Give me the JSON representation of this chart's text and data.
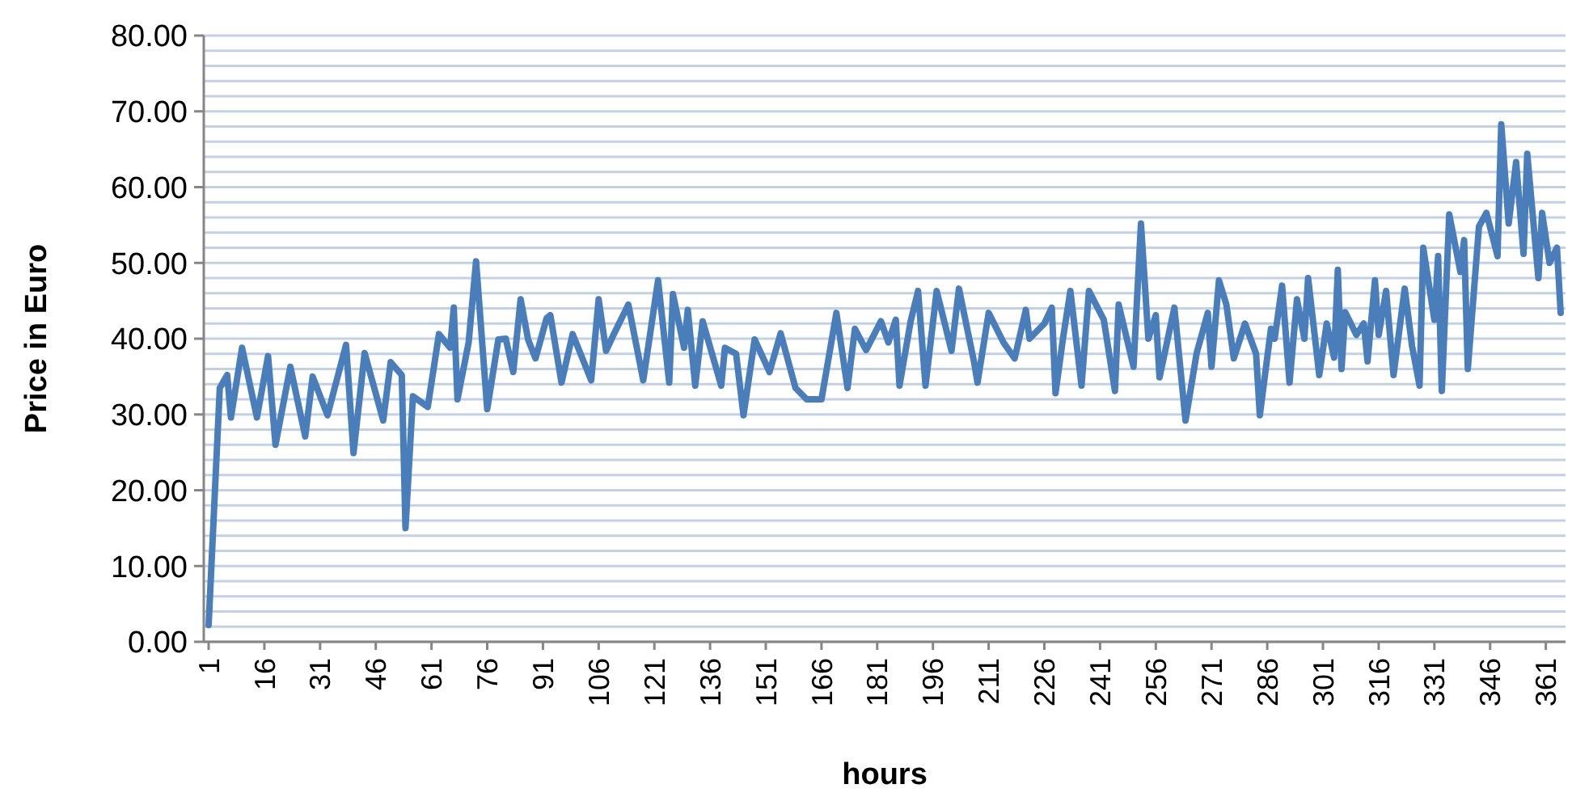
{
  "chart_data": {
    "type": "line",
    "xlabel": "hours",
    "ylabel": "Price in Euro",
    "color": "#4a7ebb",
    "grid": "y",
    "marker": "none",
    "line_style": "solid",
    "xlim": [
      1,
      365
    ],
    "xticks": [
      1,
      16,
      31,
      46,
      61,
      76,
      91,
      106,
      121,
      136,
      151,
      166,
      181,
      196,
      211,
      226,
      241,
      256,
      271,
      286,
      301,
      316,
      331,
      346,
      361
    ],
    "ylim": [
      0,
      80
    ],
    "yticks": [
      {
        "value": 0,
        "label": "0.00"
      },
      {
        "value": 2,
        "label": null
      },
      {
        "value": 4,
        "label": null
      },
      {
        "value": 6,
        "label": null
      },
      {
        "value": 8,
        "label": null
      },
      {
        "value": 10,
        "label": "10.00"
      },
      {
        "value": 12,
        "label": null
      },
      {
        "value": 14,
        "label": null
      },
      {
        "value": 16,
        "label": null
      },
      {
        "value": 18,
        "label": null
      },
      {
        "value": 20,
        "label": "20.00"
      },
      {
        "value": 22,
        "label": null
      },
      {
        "value": 24,
        "label": null
      },
      {
        "value": 26,
        "label": null
      },
      {
        "value": 28,
        "label": null
      },
      {
        "value": 30,
        "label": "30.00"
      },
      {
        "value": 32,
        "label": null
      },
      {
        "value": 34,
        "label": null
      },
      {
        "value": 36,
        "label": null
      },
      {
        "value": 38,
        "label": null
      },
      {
        "value": 40,
        "label": "40.00"
      },
      {
        "value": 42,
        "label": null
      },
      {
        "value": 44,
        "label": null
      },
      {
        "value": 46,
        "label": null
      },
      {
        "value": 48,
        "label": null
      },
      {
        "value": 50,
        "label": "50.00"
      },
      {
        "value": 52,
        "label": null
      },
      {
        "value": 54,
        "label": null
      },
      {
        "value": 56,
        "label": null
      },
      {
        "value": 58,
        "label": null
      },
      {
        "value": 60,
        "label": "60.00"
      },
      {
        "value": 62,
        "label": null
      },
      {
        "value": 64,
        "label": null
      },
      {
        "value": 66,
        "label": null
      },
      {
        "value": 68,
        "label": null
      },
      {
        "value": 70,
        "label": "70.00"
      },
      {
        "value": 72,
        "label": null
      },
      {
        "value": 74,
        "label": null
      },
      {
        "value": 76,
        "label": null
      },
      {
        "value": 78,
        "label": null
      },
      {
        "value": 80,
        "label": "80.00"
      }
    ],
    "x": [
      1,
      4,
      6,
      7,
      10,
      14,
      17,
      19,
      23,
      27,
      29,
      33,
      38,
      40,
      43,
      48,
      50,
      53,
      54,
      56,
      60,
      63,
      66,
      67,
      68,
      71,
      73,
      76,
      79,
      81,
      83,
      85,
      87,
      89,
      92,
      93,
      96,
      99,
      104,
      106,
      108,
      110,
      114,
      118,
      122,
      125,
      126,
      129,
      130,
      132,
      134,
      139,
      140,
      143,
      145,
      148,
      152,
      155,
      159,
      162,
      166,
      170,
      173,
      175,
      178,
      182,
      184,
      186,
      187,
      190,
      192,
      194,
      197,
      201,
      203,
      207,
      208,
      211,
      215,
      218,
      221,
      222,
      226,
      228,
      229,
      231,
      233,
      236,
      238,
      242,
      245,
      246,
      250,
      252,
      254,
      256,
      257,
      261,
      264,
      267,
      270,
      271,
      273,
      275,
      277,
      280,
      283,
      284,
      287,
      288,
      290,
      292,
      294,
      296,
      297,
      300,
      302,
      304,
      305,
      306,
      307,
      310,
      312,
      313,
      315,
      316,
      318,
      320,
      323,
      325,
      327,
      328,
      331,
      332,
      333,
      335,
      338,
      339,
      340,
      343,
      345,
      348,
      349,
      351,
      353,
      355,
      356,
      359,
      360,
      362,
      364,
      365
    ],
    "values": [
      2.2,
      33.5,
      35.2,
      29.6,
      38.8,
      29.6,
      37.7,
      26,
      36.3,
      27.1,
      35,
      29.9,
      39.2,
      24.9,
      38.1,
      29.2,
      36.9,
      35.2,
      15,
      32.4,
      31,
      40.6,
      38.8,
      44.1,
      32,
      39.5,
      50.2,
      30.7,
      39.9,
      40,
      35.6,
      45.2,
      39.9,
      37.4,
      42.7,
      43.1,
      34.2,
      40.6,
      34.5,
      45.2,
      38.4,
      40.5,
      44.5,
      34.5,
      47.7,
      34.2,
      45.9,
      38.8,
      43.8,
      33.8,
      42.3,
      33.8,
      38.8,
      38,
      29.9,
      39.9,
      35.6,
      40.7,
      33.5,
      32,
      32,
      43.4,
      33.5,
      41.3,
      38.5,
      42.3,
      39.5,
      42.5,
      33.8,
      42.3,
      46.3,
      33.8,
      46.3,
      38.4,
      46.6,
      37.1,
      34.2,
      43.4,
      39.5,
      37.4,
      43.8,
      40,
      42,
      44.1,
      32.8,
      40,
      46.3,
      33.8,
      46.3,
      42.5,
      33.1,
      44.5,
      36.3,
      55.2,
      40,
      43.1,
      34.9,
      44.1,
      29.2,
      38.1,
      43.4,
      36.3,
      47.7,
      44.5,
      37.4,
      42,
      38,
      29.9,
      41.3,
      40,
      47,
      34.2,
      45.2,
      40,
      48,
      35.2,
      42,
      37.5,
      49.1,
      36,
      43.5,
      40.5,
      42,
      37,
      47.7,
      40.5,
      46.3,
      35.2,
      46.6,
      39,
      33.8,
      52,
      42.5,
      50.9,
      33.1,
      56.4,
      48.8,
      53,
      36,
      54.8,
      56.6,
      50.9,
      68.3,
      55.2,
      63.3,
      51.2,
      64.4,
      48,
      56.6,
      50,
      52,
      43.4
    ]
  }
}
